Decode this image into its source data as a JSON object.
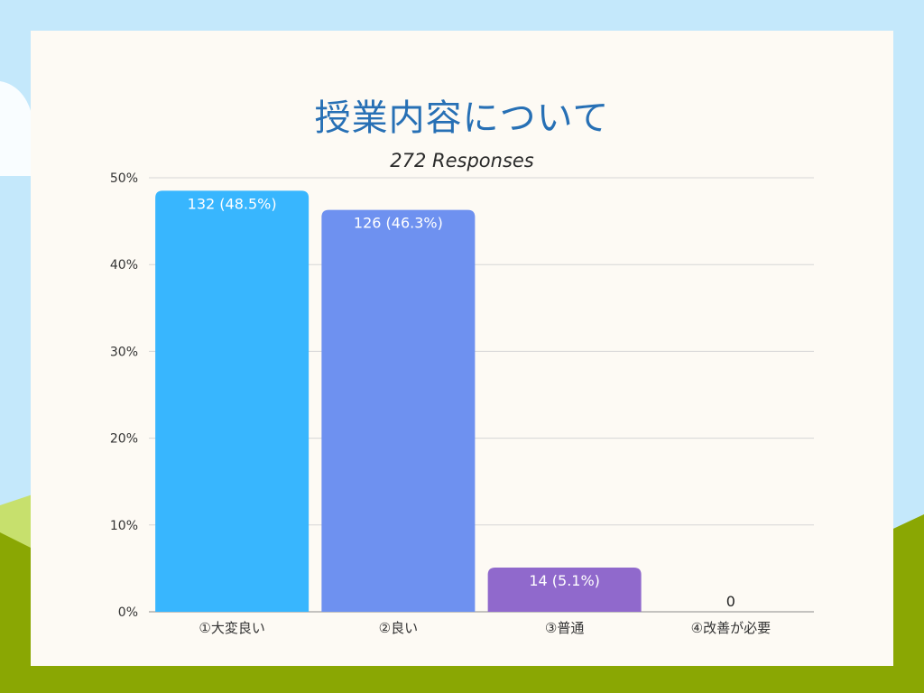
{
  "chart_data": {
    "type": "bar",
    "title": "授業内容について",
    "subtitle": "272 Responses",
    "categories": [
      "①大変良い",
      "②良い",
      "③普通",
      "④改善が必要"
    ],
    "values": [
      48.5,
      46.3,
      5.1,
      0
    ],
    "value_labels": [
      "132 (48.5%)",
      "126 (46.3%)",
      "14 (5.1%)",
      "0"
    ],
    "ylim": [
      0,
      50
    ],
    "yticks": [
      0,
      10,
      20,
      30,
      40,
      50
    ],
    "ytick_labels": [
      "0%",
      "10%",
      "20%",
      "30%",
      "40%",
      "50%"
    ],
    "grid": true,
    "colors": [
      "#38b6fe",
      "#6e91f0",
      "#9069cc",
      "#9069cc"
    ]
  }
}
